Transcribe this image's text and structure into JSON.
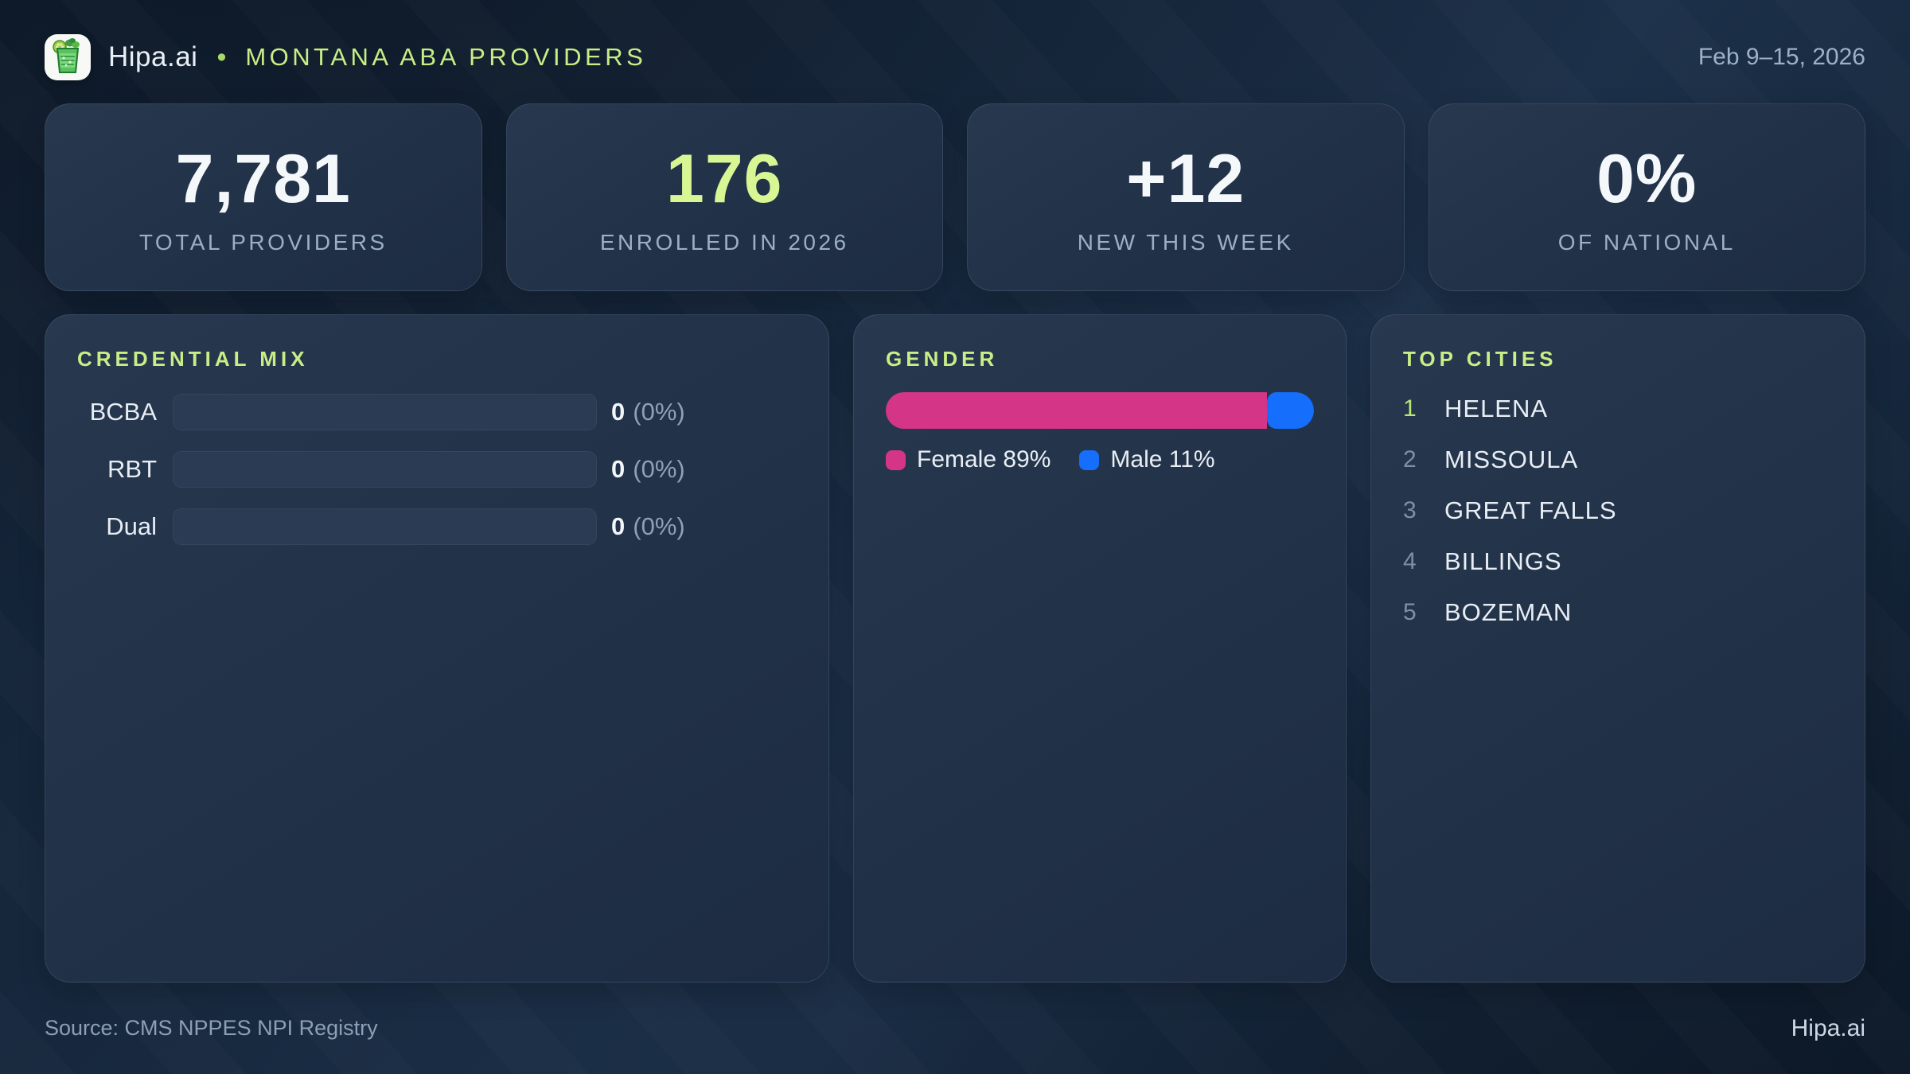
{
  "header": {
    "logo_icon": "mojito-glass-icon",
    "brand": "Hipa.ai",
    "separator": "•",
    "title": "MONTANA ABA PROVIDERS",
    "date_range": "Feb 9–15, 2026"
  },
  "stats": [
    {
      "value": "7,781",
      "label": "TOTAL PROVIDERS"
    },
    {
      "value": "176",
      "label": "ENROLLED IN 2026"
    },
    {
      "value": "+12",
      "label": "NEW THIS WEEK"
    },
    {
      "value": "0%",
      "label": "OF NATIONAL"
    }
  ],
  "credential_mix": {
    "title": "CREDENTIAL MIX",
    "rows": [
      {
        "label": "BCBA",
        "count": "0",
        "percent": "(0%)",
        "fill_pct": 0
      },
      {
        "label": "RBT",
        "count": "0",
        "percent": "(0%)",
        "fill_pct": 0
      },
      {
        "label": "Dual",
        "count": "0",
        "percent": "(0%)",
        "fill_pct": 0
      }
    ]
  },
  "gender": {
    "title": "GENDER",
    "female_pct": 89,
    "male_pct": 11,
    "female_label": "Female 89%",
    "male_label": "Male 11%",
    "female_color": "#d43586",
    "male_color": "#166efc"
  },
  "top_cities": {
    "title": "TOP CITIES",
    "items": [
      {
        "rank": "1",
        "city": "HELENA"
      },
      {
        "rank": "2",
        "city": "MISSOULA"
      },
      {
        "rank": "3",
        "city": "GREAT FALLS"
      },
      {
        "rank": "4",
        "city": "BILLINGS"
      },
      {
        "rank": "5",
        "city": "BOZEMAN"
      }
    ]
  },
  "footer": {
    "source": "Source: CMS NPPES NPI Registry",
    "brand": "Hipa.ai"
  },
  "colors": {
    "accent_green": "#c8ee86",
    "value_green": "#d8f693",
    "pink": "#d43586",
    "blue": "#166efc"
  }
}
